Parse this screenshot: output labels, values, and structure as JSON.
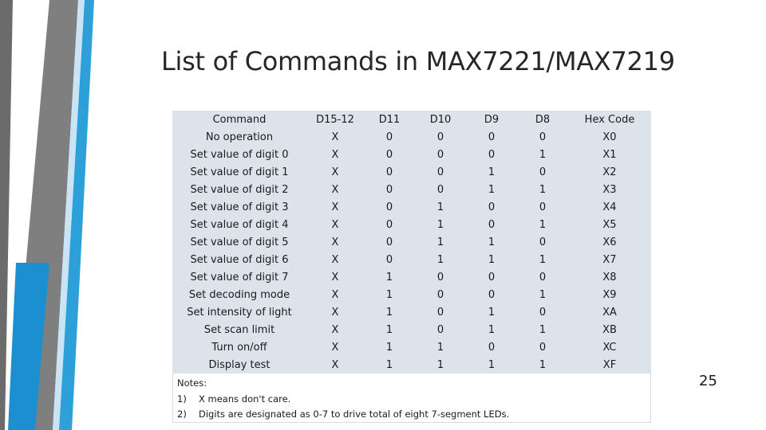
{
  "slide": {
    "title": "List of Commands in MAX7221/MAX7219",
    "page_number": "25"
  },
  "colors": {
    "stripe_gray": "#7f7f7f",
    "stripe_blue": "#2d9fd9",
    "stripe_light": "#c9e4f5",
    "table_background": "#dde3ea",
    "title_text": "#262626"
  },
  "table": {
    "headers": [
      "Command",
      "D15-12",
      "D11",
      "D10",
      "D9",
      "D8",
      "Hex Code"
    ],
    "rows": [
      [
        "No operation",
        "X",
        "0",
        "0",
        "0",
        "0",
        "X0"
      ],
      [
        "Set value of digit 0",
        "X",
        "0",
        "0",
        "0",
        "1",
        "X1"
      ],
      [
        "Set value of digit 1",
        "X",
        "0",
        "0",
        "1",
        "0",
        "X2"
      ],
      [
        "Set value of digit 2",
        "X",
        "0",
        "0",
        "1",
        "1",
        "X3"
      ],
      [
        "Set value of digit 3",
        "X",
        "0",
        "1",
        "0",
        "0",
        "X4"
      ],
      [
        "Set value of digit 4",
        "X",
        "0",
        "1",
        "0",
        "1",
        "X5"
      ],
      [
        "Set value of digit 5",
        "X",
        "0",
        "1",
        "1",
        "0",
        "X6"
      ],
      [
        "Set value of digit 6",
        "X",
        "0",
        "1",
        "1",
        "1",
        "X7"
      ],
      [
        "Set value of digit 7",
        "X",
        "1",
        "0",
        "0",
        "0",
        "X8"
      ],
      [
        "Set decoding mode",
        "X",
        "1",
        "0",
        "0",
        "1",
        "X9"
      ],
      [
        "Set intensity of light",
        "X",
        "1",
        "0",
        "1",
        "0",
        "XA"
      ],
      [
        "Set scan limit",
        "X",
        "1",
        "0",
        "1",
        "1",
        "XB"
      ],
      [
        "Turn on/off",
        "X",
        "1",
        "1",
        "0",
        "0",
        "XC"
      ],
      [
        "Display test",
        "X",
        "1",
        "1",
        "1",
        "1",
        "XF"
      ]
    ]
  },
  "notes": {
    "heading": "Notes:",
    "items": [
      {
        "num": "1)",
        "text": "X means don't care."
      },
      {
        "num": "2)",
        "text": "Digits are designated as 0-7 to drive total of eight 7-segment LEDs."
      }
    ]
  }
}
